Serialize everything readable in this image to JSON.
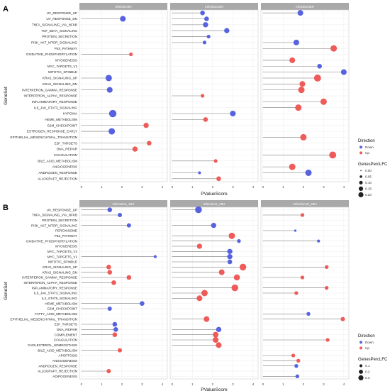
{
  "colors": {
    "down": "#5762e0",
    "up": "#ee5b59",
    "strip": "#a9a9a9"
  },
  "chart_data": [
    {
      "type": "scatter",
      "variant": "lollipop",
      "panel_label": "A",
      "xlabel": "PValueScore",
      "ylabel": "GeneSet",
      "xlim": [
        -0.1,
        4.25
      ],
      "xticks": [
        0,
        1,
        2,
        3,
        4
      ],
      "facets": [
        "Infection0H",
        "Infection18H",
        "Infection48H"
      ],
      "categories": [
        "UV_RESPONSE_UP",
        "UV_RESPONSE_DN",
        "TNFA_SIGNALING_VIA_NFKB",
        "TGF_BETA_SIGNALING",
        "PROTEIN_SECRETION",
        "PI3K_AKT_MTOR_SIGNALING",
        "P53_PATHWAY",
        "OXIDATIVE_PHOSPHORYLATION",
        "MYOGENESIS",
        "MYC_TARGETS_V2",
        "MITOTIC_SPINDLE",
        "KRAS_SIGNALING_UP",
        "KRAS_SIGNALING_DN",
        "INTERFERON_GAMMA_RESPONSE",
        "INTERFERON_ALPHA_RESPONSE",
        "INFLAMMATORY_RESPONSE",
        "IL6_JAK_STAT3_SIGNALING",
        "HYPOXIA",
        "HEME_METABOLISM",
        "G2M_CHECKPOINT",
        "ESTROGEN_RESPONSE_EARLY",
        "EPITHELIAL_MESENCHYMAL_TRANSITION",
        "E2F_TARGETS",
        "DNA_REPAIR",
        "COAGULATION",
        "BILE_ACID_METABOLISM",
        "ANGIOGENESIS",
        "ANDROGEN_RESPONSE",
        "ALLOGRAFT_REJECTION"
      ],
      "points": [
        {
          "facet": "Infection0H",
          "set": "UV_RESPONSE_DN",
          "x": 2.05,
          "dir": "Down",
          "size": 0.12
        },
        {
          "facet": "Infection0H",
          "set": "OXIDATIVE_PHOSPHORYLATION",
          "x": 2.45,
          "dir": "Up",
          "size": 0.05
        },
        {
          "facet": "Infection0H",
          "set": "KRAS_SIGNALING_UP",
          "x": 1.35,
          "dir": "Down",
          "size": 0.15
        },
        {
          "facet": "Infection0H",
          "set": "INTERFERON_GAMMA_RESPONSE",
          "x": 1.4,
          "dir": "Down",
          "size": 0.12
        },
        {
          "facet": "Infection0H",
          "set": "HYPOXIA",
          "x": 1.55,
          "dir": "Down",
          "size": 0.2
        },
        {
          "facet": "Infection0H",
          "set": "G2M_CHECKPOINT",
          "x": 3.2,
          "dir": "Up",
          "size": 0.1
        },
        {
          "facet": "Infection0H",
          "set": "ESTROGEN_RESPONSE_EARLY",
          "x": 1.5,
          "dir": "Down",
          "size": 0.15
        },
        {
          "facet": "Infection0H",
          "set": "E2F_TARGETS",
          "x": 3.35,
          "dir": "Up",
          "size": 0.08
        },
        {
          "facet": "Infection0H",
          "set": "DNA_REPAIR",
          "x": 2.65,
          "dir": "Up",
          "size": 0.1
        },
        {
          "facet": "Infection18H",
          "set": "UV_RESPONSE_UP",
          "x": 1.5,
          "dir": "Down",
          "size": 0.08
        },
        {
          "facet": "Infection18H",
          "set": "UV_RESPONSE_DN",
          "x": 1.7,
          "dir": "Down",
          "size": 0.08
        },
        {
          "facet": "Infection18H",
          "set": "TNFA_SIGNALING_VIA_NFKB",
          "x": 1.65,
          "dir": "Down",
          "size": 0.1
        },
        {
          "facet": "Infection18H",
          "set": "TGF_BETA_SIGNALING",
          "x": 2.7,
          "dir": "Down",
          "size": 0.1
        },
        {
          "facet": "Infection18H",
          "set": "PROTEIN_SECRETION",
          "x": 1.8,
          "dir": "Down",
          "size": 0.05
        },
        {
          "facet": "Infection18H",
          "set": "PI3K_AKT_MTOR_SIGNALING",
          "x": 1.6,
          "dir": "Down",
          "size": 0.05
        },
        {
          "facet": "Infection18H",
          "set": "INTERFERON_ALPHA_RESPONSE",
          "x": 1.5,
          "dir": "Up",
          "size": 0.05
        },
        {
          "facet": "Infection18H",
          "set": "HYPOXIA",
          "x": 3.0,
          "dir": "Down",
          "size": 0.12
        },
        {
          "facet": "Infection18H",
          "set": "HEME_METABOLISM",
          "x": 1.65,
          "dir": "Up",
          "size": 0.08
        },
        {
          "facet": "Infection18H",
          "set": "BILE_ACID_METABOLISM",
          "x": 2.15,
          "dir": "Up",
          "size": 0.05
        },
        {
          "facet": "Infection18H",
          "set": "ANDROGEN_RESPONSE",
          "x": 1.35,
          "dir": "Down",
          "size": 0.03
        },
        {
          "facet": "Infection18H",
          "set": "ALLOGRAFT_REJECTION",
          "x": 2.3,
          "dir": "Up",
          "size": 0.08
        },
        {
          "facet": "Infection48H",
          "set": "UV_RESPONSE_UP",
          "x": 1.85,
          "dir": "Down",
          "size": 0.12
        },
        {
          "facet": "Infection48H",
          "set": "PI3K_AKT_MTOR_SIGNALING",
          "x": 1.65,
          "dir": "Down",
          "size": 0.12
        },
        {
          "facet": "Infection48H",
          "set": "P53_PATHWAY",
          "x": 3.5,
          "dir": "Up",
          "size": 0.15
        },
        {
          "facet": "Infection48H",
          "set": "MYOGENESIS",
          "x": 1.45,
          "dir": "Up",
          "size": 0.12
        },
        {
          "facet": "Infection48H",
          "set": "MYC_TARGETS_V2",
          "x": 2.8,
          "dir": "Down",
          "size": 0.08
        },
        {
          "facet": "Infection48H",
          "set": "MITOTIC_SPINDLE",
          "x": 4.0,
          "dir": "Down",
          "size": 0.12
        },
        {
          "facet": "Infection48H",
          "set": "KRAS_SIGNALING_UP",
          "x": 2.7,
          "dir": "Up",
          "size": 0.18
        },
        {
          "facet": "Infection48H",
          "set": "KRAS_SIGNALING_DN",
          "x": 1.95,
          "dir": "Up",
          "size": 0.12
        },
        {
          "facet": "Infection48H",
          "set": "INTERFERON_GAMMA_RESPONSE",
          "x": 1.9,
          "dir": "Up",
          "size": 0.15
        },
        {
          "facet": "Infection48H",
          "set": "INFLAMMATORY_RESPONSE",
          "x": 3.0,
          "dir": "Up",
          "size": 0.15
        },
        {
          "facet": "Infection48H",
          "set": "IL6_JAK_STAT3_SIGNALING",
          "x": 1.75,
          "dir": "Up",
          "size": 0.15
        },
        {
          "facet": "Infection48H",
          "set": "EPITHELIAL_MESENCHYMAL_TRANSITION",
          "x": 2.0,
          "dir": "Up",
          "size": 0.15
        },
        {
          "facet": "Infection48H",
          "set": "COAGULATION",
          "x": 3.45,
          "dir": "Up",
          "size": 0.18
        },
        {
          "facet": "Infection48H",
          "set": "ANGIOGENESIS",
          "x": 1.45,
          "dir": "Up",
          "size": 0.15
        },
        {
          "facet": "Infection48H",
          "set": "ANDROGEN_RESPONSE",
          "x": 2.25,
          "dir": "Down",
          "size": 0.15
        }
      ],
      "legend": {
        "position": "right",
        "direction_title": "Direction",
        "direction_labels": [
          "Down",
          "Up"
        ],
        "size_title": "GenesPercLFC",
        "size_labels": [
          "0.00",
          "0.05",
          "0.10",
          "0.15",
          "0.20"
        ],
        "size_values": [
          0.0,
          0.05,
          0.1,
          0.15,
          0.2
        ],
        "size_max": 0.2
      }
    },
    {
      "type": "scatter",
      "variant": "lollipop",
      "panel_label": "B",
      "xlabel": "PValueScore",
      "ylabel": "GeneSet",
      "xlim": [
        -0.1,
        4.25
      ],
      "xticks": [
        0,
        1,
        2,
        3,
        4
      ],
      "facets": [
        "Infection2_18H",
        "Infection2_48H",
        "Infection15_48H"
      ],
      "categories": [
        "UV_RESPONSE_UP",
        "TNFA_SIGNALING_VIA_NFKB",
        "PROTEIN_SECRETION",
        "PI3K_AKT_MTOR_SIGNALING",
        "PEROXISOME",
        "P53_PATHWAY",
        "OXIDATIVE_PHOSPHORYLATION",
        "MYOGENESIS",
        "MYC_TARGETS_V2",
        "MYC_TARGETS_V1",
        "MITOTIC_SPINDLE",
        "KRAS_SIGNALING_UP",
        "KRAS_SIGNALING_DN",
        "INTERFERON_GAMMA_RESPONSE",
        "INTERFERON_ALPHA_RESPONSE",
        "INFLAMMATORY_RESPONSE",
        "IL6_JAK_STAT3_SIGNALING",
        "IL2_STAT5_SIGNALING",
        "HEME_METABOLISM",
        "G2M_CHECKPOINT",
        "FATTY_ACID_METABOLISM",
        "EPITHELIAL_MESENCHYMAL_TRANSITION",
        "E2F_TARGETS",
        "DNA_REPAIR",
        "COMPLEMENT",
        "COAGULATION",
        "CHOLESTEROL_HOMEOSTASIS",
        "BILE_ACID_METABOLISM",
        "APOPTOSIS",
        "ANGIOGENESIS",
        "ANDROGEN_RESPONSE",
        "ALLOGRAFT_REJECTION",
        "ADIPOGENESIS"
      ],
      "points": [
        {
          "facet": "Infection2_18H",
          "set": "UV_RESPONSE_UP",
          "x": 1.4,
          "dir": "Down",
          "size": 0.12
        },
        {
          "facet": "Infection2_18H",
          "set": "TNFA_SIGNALING_VIA_NFKB",
          "x": 1.9,
          "dir": "Down",
          "size": 0.1
        },
        {
          "facet": "Infection2_18H",
          "set": "PI3K_AKT_MTOR_SIGNALING",
          "x": 2.35,
          "dir": "Down",
          "size": 0.1
        },
        {
          "facet": "Infection2_18H",
          "set": "MYC_TARGETS_V1",
          "x": 3.65,
          "dir": "Down",
          "size": 0.05
        },
        {
          "facet": "Infection2_18H",
          "set": "KRAS_SIGNALING_UP",
          "x": 1.35,
          "dir": "Up",
          "size": 0.12
        },
        {
          "facet": "Infection2_18H",
          "set": "KRAS_SIGNALING_DN",
          "x": 1.4,
          "dir": "Up",
          "size": 0.12
        },
        {
          "facet": "Infection2_18H",
          "set": "INTERFERON_GAMMA_RESPONSE",
          "x": 2.35,
          "dir": "Up",
          "size": 0.12
        },
        {
          "facet": "Infection2_18H",
          "set": "INTERFERON_ALPHA_RESPONSE",
          "x": 1.6,
          "dir": "Up",
          "size": 0.12
        },
        {
          "facet": "Infection2_18H",
          "set": "HEME_METABOLISM",
          "x": 3.0,
          "dir": "Down",
          "size": 0.12
        },
        {
          "facet": "Infection2_18H",
          "set": "G2M_CHECKPOINT",
          "x": 1.4,
          "dir": "Down",
          "size": 0.1
        },
        {
          "facet": "Infection2_18H",
          "set": "E2F_TARGETS",
          "x": 1.65,
          "dir": "Down",
          "size": 0.12
        },
        {
          "facet": "Infection2_18H",
          "set": "DNA_REPAIR",
          "x": 1.7,
          "dir": "Down",
          "size": 0.12
        },
        {
          "facet": "Infection2_18H",
          "set": "COMPLEMENT",
          "x": 1.65,
          "dir": "Up",
          "size": 0.12
        },
        {
          "facet": "Infection2_18H",
          "set": "BILE_ACID_METABOLISM",
          "x": 1.9,
          "dir": "Up",
          "size": 0.1
        },
        {
          "facet": "Infection2_18H",
          "set": "ALLOGRAFT_REJECTION",
          "x": 1.35,
          "dir": "Up",
          "size": 0.1
        },
        {
          "facet": "Infection2_48H",
          "set": "UV_RESPONSE_UP",
          "x": 1.3,
          "dir": "Down",
          "size": 0.25
        },
        {
          "facet": "Infection2_48H",
          "set": "PI3K_AKT_MTOR_SIGNALING",
          "x": 2.05,
          "dir": "Down",
          "size": 0.15
        },
        {
          "facet": "Infection2_48H",
          "set": "P53_PATHWAY",
          "x": 2.95,
          "dir": "Up",
          "size": 0.22
        },
        {
          "facet": "Infection2_48H",
          "set": "OXIDATIVE_PHOSPHORYLATION",
          "x": 3.3,
          "dir": "Down",
          "size": 0.08
        },
        {
          "facet": "Infection2_48H",
          "set": "MYOGENESIS",
          "x": 1.35,
          "dir": "Up",
          "size": 0.15
        },
        {
          "facet": "Infection2_48H",
          "set": "MYC_TARGETS_V2",
          "x": 2.85,
          "dir": "Down",
          "size": 0.15
        },
        {
          "facet": "Infection2_48H",
          "set": "MYC_TARGETS_V1",
          "x": 2.85,
          "dir": "Down",
          "size": 0.15
        },
        {
          "facet": "Infection2_48H",
          "set": "MITOTIC_SPINDLE",
          "x": 2.85,
          "dir": "Down",
          "size": 0.12
        },
        {
          "facet": "Infection2_48H",
          "set": "KRAS_SIGNALING_UP",
          "x": 3.5,
          "dir": "Up",
          "size": 0.25
        },
        {
          "facet": "Infection2_48H",
          "set": "KRAS_SIGNALING_DN",
          "x": 2.45,
          "dir": "Up",
          "size": 0.18
        },
        {
          "facet": "Infection2_48H",
          "set": "INTERFERON_GAMMA_RESPONSE",
          "x": 3.2,
          "dir": "Up",
          "size": 0.2
        },
        {
          "facet": "Infection2_48H",
          "set": "INFLAMMATORY_RESPONSE",
          "x": 3.1,
          "dir": "Up",
          "size": 0.25
        },
        {
          "facet": "Infection2_48H",
          "set": "IL6_JAK_STAT3_SIGNALING",
          "x": 1.6,
          "dir": "Up",
          "size": 0.22
        },
        {
          "facet": "Infection2_48H",
          "set": "IL2_STAT5_SIGNALING",
          "x": 1.35,
          "dir": "Up",
          "size": 0.18
        },
        {
          "facet": "Infection2_48H",
          "set": "EPITHELIAL_MESENCHYMAL_TRANSITION",
          "x": 1.7,
          "dir": "Up",
          "size": 0.18
        },
        {
          "facet": "Infection2_48H",
          "set": "DNA_REPAIR",
          "x": 2.3,
          "dir": "Down",
          "size": 0.15
        },
        {
          "facet": "Infection2_48H",
          "set": "COMPLEMENT",
          "x": 2.15,
          "dir": "Up",
          "size": 0.18
        },
        {
          "facet": "Infection2_48H",
          "set": "COAGULATION",
          "x": 2.15,
          "dir": "Up",
          "size": 0.18
        },
        {
          "facet": "Infection2_48H",
          "set": "CHOLESTEROL_HOMEOSTASIS",
          "x": 2.3,
          "dir": "Up",
          "size": 0.18
        },
        {
          "facet": "Infection15_48H",
          "set": "TNFA_SIGNALING_VIA_NFKB",
          "x": 1.95,
          "dir": "Up",
          "size": 0.08
        },
        {
          "facet": "Infection15_48H",
          "set": "PEROXISOME",
          "x": 1.6,
          "dir": "Down",
          "size": 0.03
        },
        {
          "facet": "Infection15_48H",
          "set": "OXIDATIVE_PHOSPHORYLATION",
          "x": 2.75,
          "dir": "Down",
          "size": 0.05
        },
        {
          "facet": "Infection15_48H",
          "set": "KRAS_SIGNALING_UP",
          "x": 3.15,
          "dir": "Up",
          "size": 0.08
        },
        {
          "facet": "Infection15_48H",
          "set": "INTERFERON_GAMMA_RESPONSE",
          "x": 1.95,
          "dir": "Up",
          "size": 0.08
        },
        {
          "facet": "Infection15_48H",
          "set": "INFLAMMATORY_RESPONSE",
          "x": 3.15,
          "dir": "Up",
          "size": 0.08
        },
        {
          "facet": "Infection15_48H",
          "set": "IL6_JAK_STAT3_SIGNALING",
          "x": 1.65,
          "dir": "Up",
          "size": 0.08
        },
        {
          "facet": "Infection15_48H",
          "set": "FATTY_ACID_METABOLISM",
          "x": 2.25,
          "dir": "Down",
          "size": 0.08
        },
        {
          "facet": "Infection15_48H",
          "set": "EPITHELIAL_MESENCHYMAL_TRANSITION",
          "x": 3.95,
          "dir": "Up",
          "size": 0.1
        },
        {
          "facet": "Infection15_48H",
          "set": "COAGULATION",
          "x": 3.2,
          "dir": "Up",
          "size": 0.08
        },
        {
          "facet": "Infection15_48H",
          "set": "APOPTOSIS",
          "x": 1.5,
          "dir": "Up",
          "size": 0.08
        },
        {
          "facet": "Infection15_48H",
          "set": "ANGIOGENESIS",
          "x": 1.75,
          "dir": "Up",
          "size": 0.08
        },
        {
          "facet": "Infection15_48H",
          "set": "ANDROGEN_RESPONSE",
          "x": 1.65,
          "dir": "Down",
          "size": 0.08
        },
        {
          "facet": "Infection15_48H",
          "set": "ADIPOGENESIS",
          "x": 1.7,
          "dir": "Down",
          "size": 0.08
        }
      ],
      "legend": {
        "position": "right",
        "direction_title": "Direction",
        "direction_labels": [
          "Down",
          "Up"
        ],
        "size_title": "GenesPercLFC",
        "size_labels": [
          "0.1",
          "0.2",
          "0.3"
        ],
        "size_values": [
          0.1,
          0.2,
          0.3
        ],
        "size_max": 0.3
      }
    }
  ]
}
